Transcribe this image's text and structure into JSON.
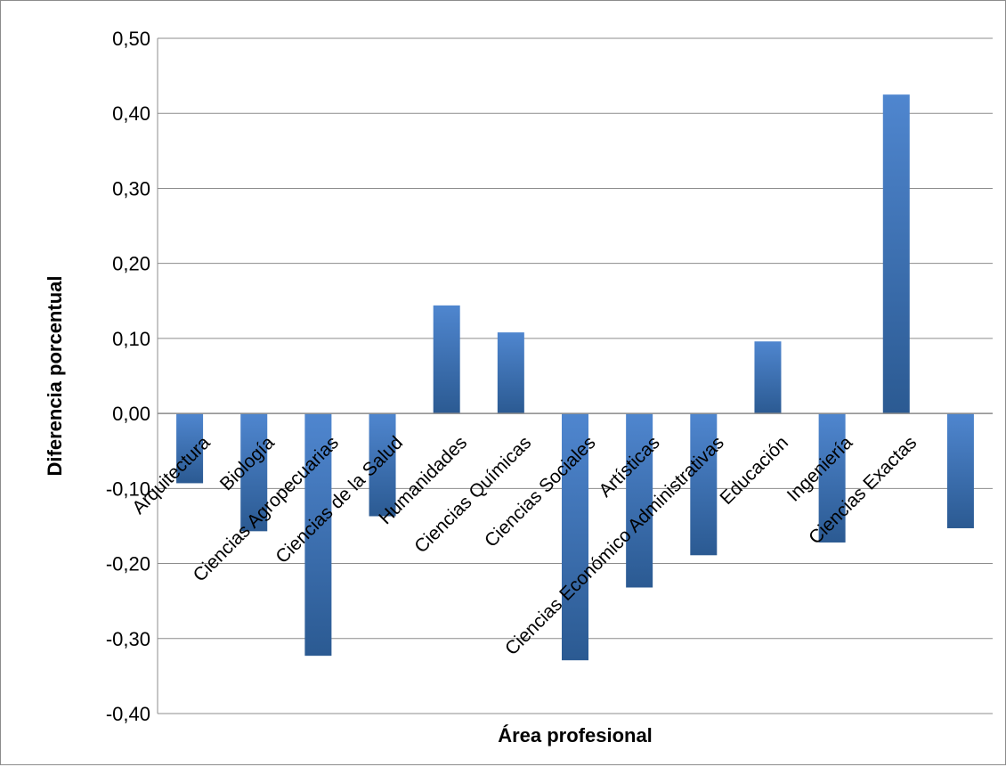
{
  "chart_data": {
    "type": "bar",
    "title": "",
    "xlabel": "Área profesional",
    "ylabel": "Diferencia porcentual",
    "ylim": [
      -0.4,
      0.5
    ],
    "yticks": [
      -0.4,
      -0.3,
      -0.2,
      -0.1,
      0.0,
      0.1,
      0.2,
      0.3,
      0.4,
      0.5
    ],
    "ytick_labels": [
      "-0,40",
      "-0,30",
      "-0,20",
      "-0,10",
      "0,00",
      "0,10",
      "0,20",
      "0,30",
      "0,40",
      "0,50"
    ],
    "grid": true,
    "legend": "none",
    "bar_color_top": "#4f86cf",
    "bar_color_bottom": "#2b5a92",
    "categories": [
      "Arquitectura",
      "Biología",
      "Ciencias Agropecuarias",
      "Ciencias de la Salud",
      "Humanidades",
      "Ciencias Químicas",
      "Ciencias Sociales",
      "Artísticas",
      "Ciencias Económico Administrativas",
      "Educación",
      "Ingeniería",
      "Ciencias Exactas",
      ""
    ],
    "values": [
      -0.093,
      -0.157,
      -0.323,
      -0.137,
      0.144,
      0.108,
      -0.329,
      -0.232,
      -0.189,
      0.096,
      -0.172,
      0.425,
      -0.153
    ]
  }
}
